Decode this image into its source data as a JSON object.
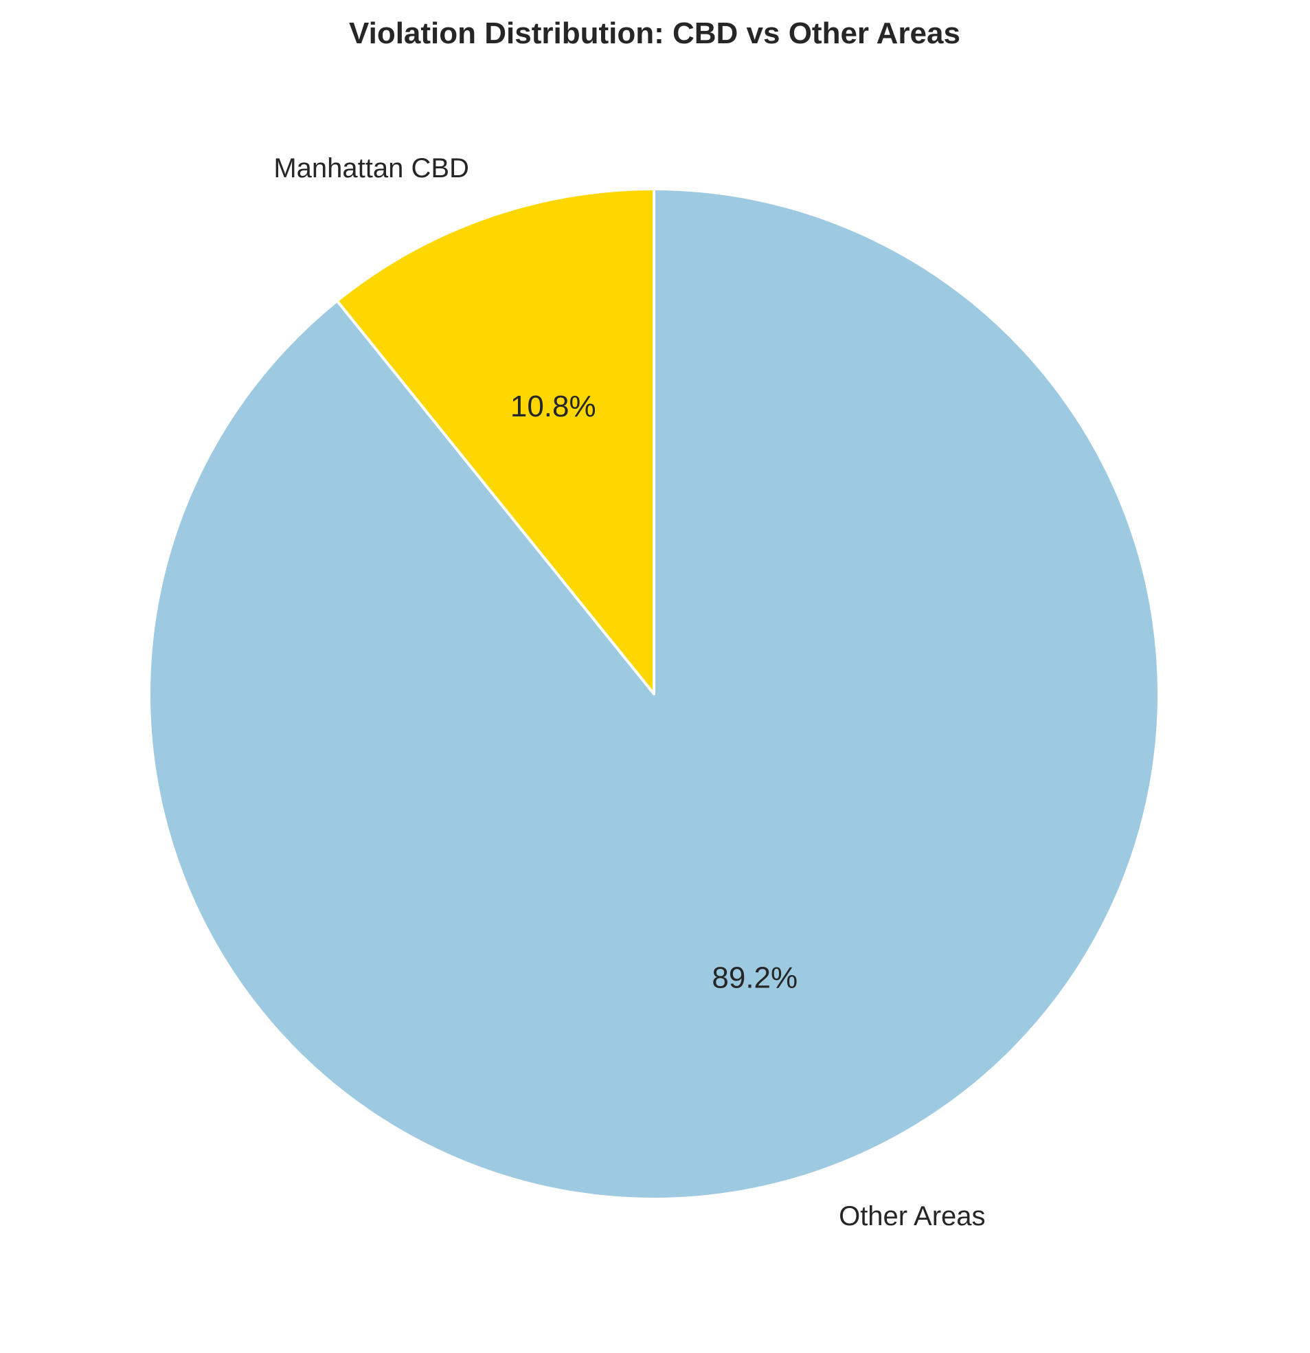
{
  "chart_data": {
    "type": "pie",
    "title": "Violation Distribution: CBD vs Other Areas",
    "slices": [
      {
        "label": "Manhattan CBD",
        "value": 10.8,
        "pct_label": "10.8%",
        "color": "#FFD700"
      },
      {
        "label": "Other Areas",
        "value": 89.2,
        "pct_label": "89.2%",
        "color": "#9ECAE1"
      }
    ],
    "start_angle_deg": 90,
    "direction": "counterclockwise"
  }
}
